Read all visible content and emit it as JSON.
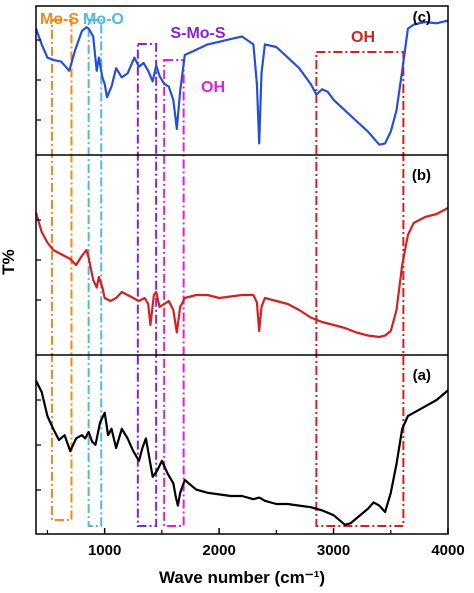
{
  "chart_data": {
    "type": "line",
    "xlabel": "Wave number (cm⁻¹)",
    "ylabel": "T%",
    "xlim": [
      400,
      4000
    ],
    "x_ticks": [
      1000,
      2000,
      3000,
      4000
    ],
    "grid": false,
    "legend": "none",
    "panel_labels": [
      "(a)",
      "(b)",
      "(c)"
    ],
    "series": [
      {
        "panel": "(c)",
        "color": "#2450d8",
        "x": [
          400,
          450,
          500,
          560,
          620,
          660,
          690,
          740,
          800,
          840,
          860,
          900,
          930,
          950,
          980,
          1000,
          1020,
          1060,
          1100,
          1150,
          1200,
          1260,
          1300,
          1340,
          1380,
          1420,
          1450,
          1480,
          1520,
          1560,
          1600,
          1630,
          1660,
          1700,
          1800,
          1900,
          2000,
          2100,
          2200,
          2300,
          2330,
          2350,
          2370,
          2400,
          2500,
          2600,
          2700,
          2800,
          2850,
          2900,
          2950,
          3000,
          3100,
          3200,
          3300,
          3400,
          3450,
          3500,
          3550,
          3600,
          3650,
          3700,
          3800,
          3900,
          4000
        ],
        "y": [
          0.92,
          0.8,
          0.7,
          0.68,
          0.67,
          0.63,
          0.6,
          0.75,
          0.9,
          0.93,
          0.92,
          0.86,
          0.6,
          0.7,
          0.55,
          0.5,
          0.4,
          0.48,
          0.62,
          0.55,
          0.58,
          0.7,
          0.63,
          0.66,
          0.6,
          0.52,
          0.64,
          0.56,
          0.5,
          0.48,
          0.38,
          0.16,
          0.45,
          0.72,
          0.76,
          0.8,
          0.82,
          0.84,
          0.86,
          0.8,
          0.5,
          0.05,
          0.58,
          0.8,
          0.78,
          0.7,
          0.62,
          0.5,
          0.42,
          0.46,
          0.44,
          0.38,
          0.3,
          0.22,
          0.14,
          0.04,
          0.05,
          0.14,
          0.3,
          0.6,
          0.92,
          0.95,
          0.97,
          0.96,
          0.98
        ]
      },
      {
        "panel": "(b)",
        "color": "#d42020",
        "x": [
          400,
          450,
          500,
          550,
          600,
          650,
          700,
          750,
          800,
          840,
          860,
          900,
          930,
          950,
          980,
          1000,
          1050,
          1100,
          1150,
          1200,
          1250,
          1300,
          1350,
          1380,
          1400,
          1430,
          1450,
          1480,
          1520,
          1560,
          1600,
          1630,
          1660,
          1700,
          1800,
          1900,
          2000,
          2100,
          2200,
          2300,
          2330,
          2350,
          2370,
          2400,
          2500,
          2600,
          2700,
          2800,
          2900,
          3000,
          3100,
          3200,
          3300,
          3400,
          3450,
          3500,
          3550,
          3600,
          3650,
          3700,
          3800,
          3900,
          4000
        ],
        "y": [
          0.85,
          0.72,
          0.65,
          0.6,
          0.58,
          0.56,
          0.54,
          0.5,
          0.56,
          0.6,
          0.55,
          0.4,
          0.35,
          0.42,
          0.35,
          0.28,
          0.26,
          0.28,
          0.32,
          0.3,
          0.28,
          0.26,
          0.28,
          0.24,
          0.1,
          0.3,
          0.32,
          0.22,
          0.24,
          0.26,
          0.2,
          0.05,
          0.22,
          0.28,
          0.3,
          0.3,
          0.28,
          0.29,
          0.3,
          0.3,
          0.25,
          0.06,
          0.22,
          0.28,
          0.26,
          0.24,
          0.2,
          0.15,
          0.12,
          0.1,
          0.08,
          0.05,
          0.03,
          0.02,
          0.03,
          0.06,
          0.2,
          0.5,
          0.7,
          0.78,
          0.82,
          0.84,
          0.88
        ]
      },
      {
        "panel": "(a)",
        "color": "#000000",
        "x": [
          400,
          450,
          500,
          550,
          600,
          650,
          700,
          750,
          800,
          830,
          860,
          890,
          920,
          960,
          1000,
          1030,
          1060,
          1100,
          1150,
          1200,
          1250,
          1300,
          1330,
          1360,
          1400,
          1420,
          1460,
          1500,
          1550,
          1600,
          1620,
          1640,
          1660,
          1700,
          1800,
          1900,
          2000,
          2100,
          2200,
          2300,
          2350,
          2400,
          2500,
          2600,
          2700,
          2800,
          2900,
          3000,
          3100,
          3150,
          3200,
          3300,
          3350,
          3400,
          3450,
          3500,
          3550,
          3600,
          3650,
          3700,
          3800,
          3900,
          4000
        ],
        "y": [
          0.92,
          0.85,
          0.7,
          0.62,
          0.55,
          0.58,
          0.48,
          0.56,
          0.58,
          0.56,
          0.6,
          0.54,
          0.52,
          0.66,
          0.72,
          0.58,
          0.62,
          0.5,
          0.62,
          0.56,
          0.48,
          0.42,
          0.5,
          0.56,
          0.4,
          0.32,
          0.36,
          0.42,
          0.34,
          0.28,
          0.2,
          0.14,
          0.22,
          0.3,
          0.24,
          0.22,
          0.21,
          0.2,
          0.2,
          0.18,
          0.19,
          0.17,
          0.15,
          0.15,
          0.14,
          0.13,
          0.11,
          0.08,
          0.02,
          0.03,
          0.06,
          0.12,
          0.16,
          0.14,
          0.1,
          0.22,
          0.4,
          0.62,
          0.7,
          0.72,
          0.76,
          0.8,
          0.86
        ]
      }
    ],
    "band_labels": [
      {
        "text": "Mo-S",
        "color": "#f08a1c"
      },
      {
        "text": "Mo-O",
        "color": "#4fb8e8"
      },
      {
        "text": "S-Mo-S",
        "color": "#8a1fd4"
      },
      {
        "text": "OH",
        "color": "#e020d8"
      },
      {
        "text": "OH",
        "color": "#d42020"
      }
    ],
    "bands": [
      {
        "label": "Mo-S",
        "color": "#f08a1c",
        "x_range": [
          540,
          710
        ]
      },
      {
        "label": "Mo-O",
        "color": "#4fb8e8",
        "x_range": [
          860,
          970
        ]
      },
      {
        "label": "S-Mo-S",
        "color": "#8a1fd4",
        "x_range": [
          1290,
          1450
        ]
      },
      {
        "label": "OH",
        "color": "#e020d8",
        "x_range": [
          1520,
          1690
        ]
      },
      {
        "label": "OH",
        "color": "#d42020",
        "x_range": [
          2850,
          3610
        ]
      }
    ]
  }
}
